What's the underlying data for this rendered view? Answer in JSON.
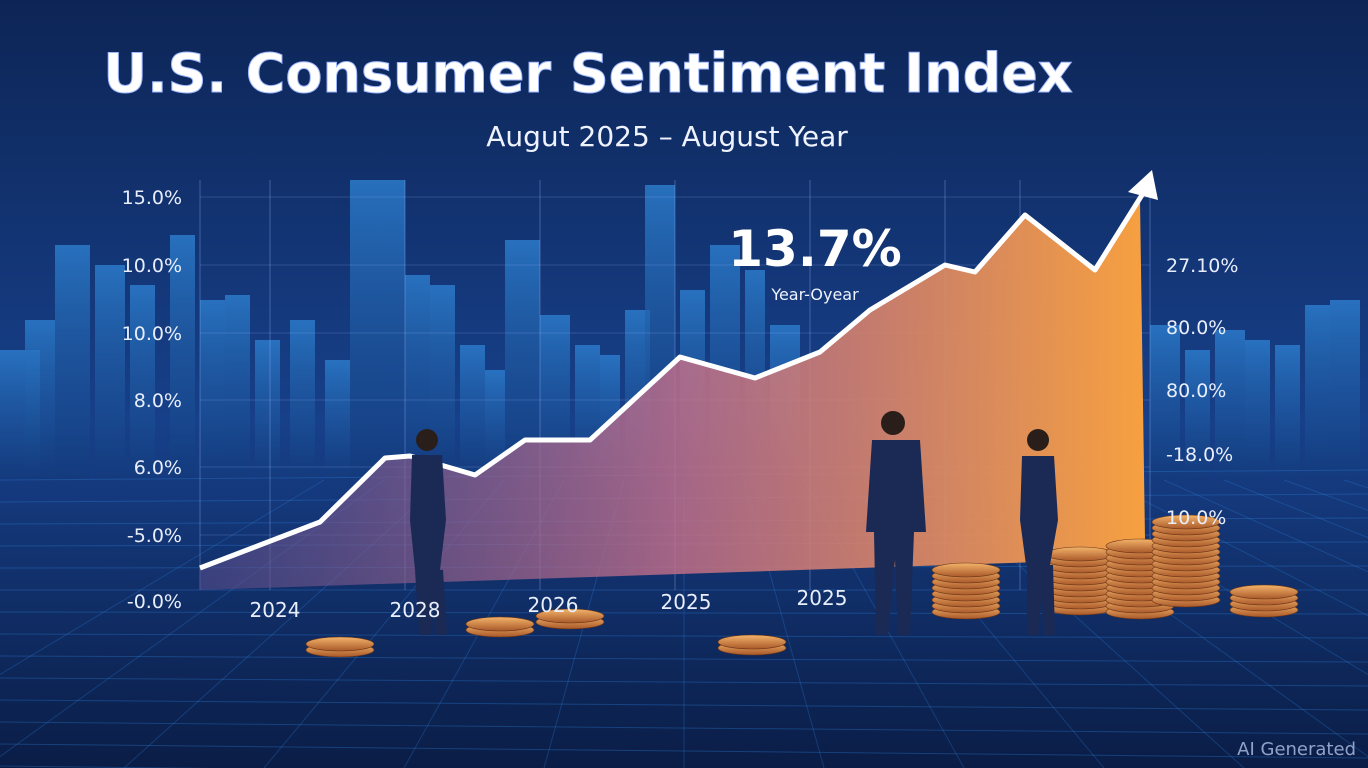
{
  "title": "U.S. Consumer Sentiment Index",
  "subtitle": "Augut 2025 – August Year",
  "left_axis_labels": [
    "15.0%",
    "10.0%",
    "10.0%",
    "8.0%",
    "6.0%",
    "-5.0%",
    "-0.0%"
  ],
  "right_axis_labels": [
    "27.10%",
    "80.0%",
    "80.0%",
    "-18.0%",
    "10.0%"
  ],
  "x_labels": [
    "2024",
    "2028",
    "2026",
    "2025",
    "2025"
  ],
  "callout": {
    "value": "13.7%",
    "label": "Year-Oyear"
  },
  "watermark": "AI Generated"
}
